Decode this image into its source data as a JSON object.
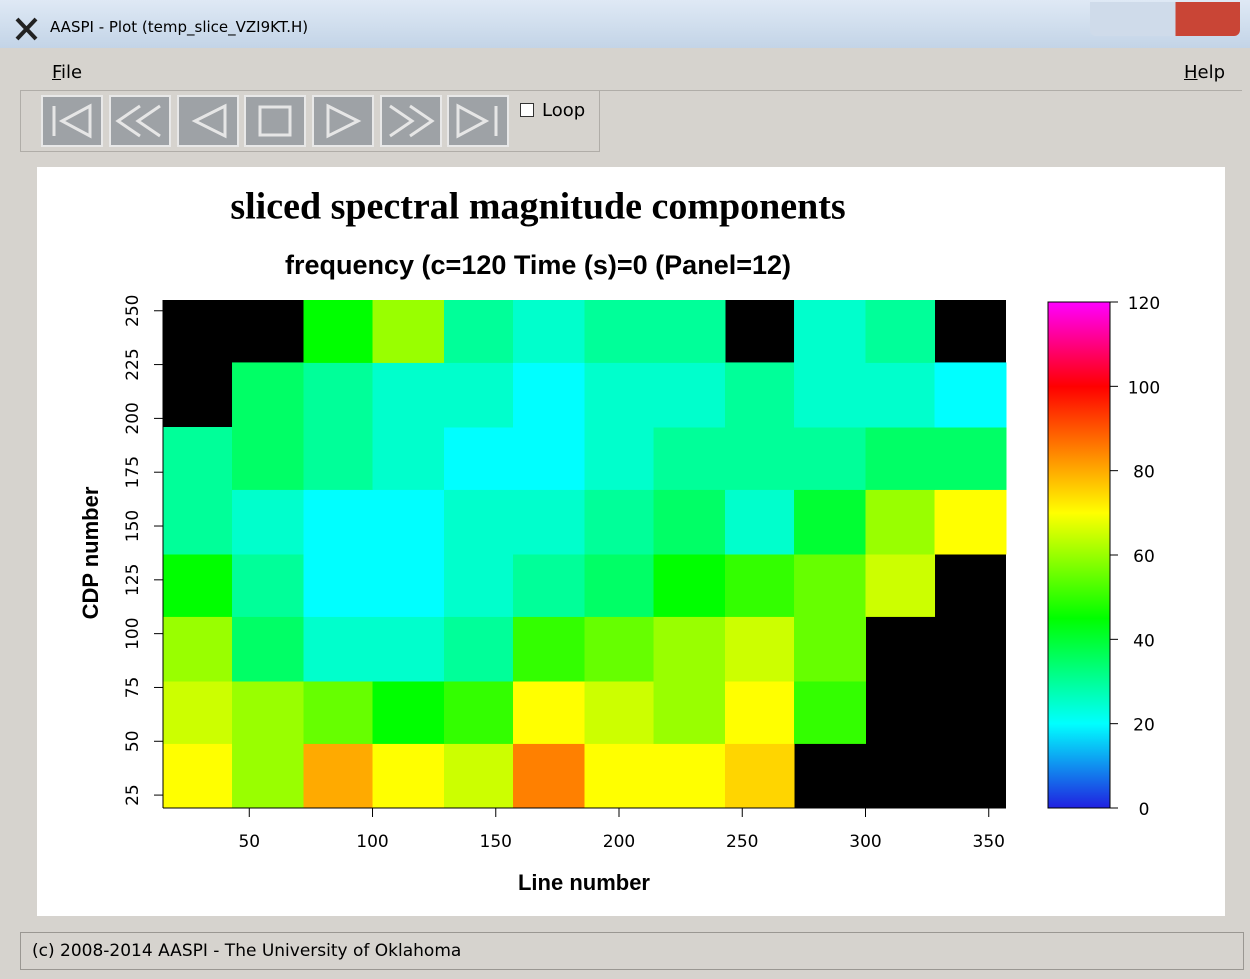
{
  "window": {
    "title": "AASPI - Plot (temp_slice_VZI9KT.H)"
  },
  "menu": [
    "File",
    "Help"
  ],
  "toolbar": {
    "loop": "Loop"
  },
  "status": "(c) 2008-2014 AASPI - The University of Oklahoma",
  "chart_data": {
    "type": "heatmap",
    "title": "sliced spectral magnitude components",
    "subtitle": "frequency (c=120 Time (s)=0 (Panel=12)",
    "xlabel": "Line number",
    "ylabel": "CDP number",
    "xlim": [
      15,
      357
    ],
    "ylim": [
      19,
      255
    ],
    "xticks": [
      50,
      100,
      150,
      200,
      250,
      300,
      350
    ],
    "yticks": [
      25,
      50,
      75,
      100,
      125,
      150,
      175,
      200,
      225,
      250
    ],
    "xbins": [
      15,
      43,
      72,
      100,
      129,
      157,
      186,
      214,
      243,
      271,
      300,
      328,
      357
    ],
    "ybins": [
      19,
      49,
      78,
      108,
      137,
      167,
      196,
      226,
      255
    ],
    "z": [
      [
        70,
        60,
        80,
        70,
        65,
        85,
        70,
        70,
        75,
        null,
        null,
        null
      ],
      [
        65,
        60,
        55,
        45,
        50,
        70,
        65,
        60,
        70,
        50,
        null,
        null
      ],
      [
        60,
        35,
        25,
        25,
        30,
        50,
        55,
        60,
        65,
        55,
        null,
        null
      ],
      [
        45,
        30,
        20,
        20,
        25,
        30,
        35,
        45,
        50,
        55,
        65,
        null
      ],
      [
        30,
        25,
        20,
        20,
        25,
        25,
        30,
        35,
        25,
        40,
        60,
        70
      ],
      [
        30,
        35,
        30,
        25,
        20,
        20,
        25,
        30,
        30,
        30,
        35,
        35
      ],
      [
        null,
        35,
        30,
        25,
        25,
        20,
        25,
        25,
        30,
        25,
        25,
        20
      ],
      [
        null,
        null,
        45,
        60,
        30,
        25,
        30,
        30,
        null,
        25,
        30,
        null
      ]
    ],
    "clim": [
      0,
      120
    ],
    "cticks": [
      0,
      20,
      40,
      60,
      80,
      100,
      120
    ],
    "colormap": [
      {
        "value": 0,
        "color": "#2020e0"
      },
      {
        "value": 20,
        "color": "#00ffff"
      },
      {
        "value": 45,
        "color": "#00ff00"
      },
      {
        "value": 70,
        "color": "#ffff00"
      },
      {
        "value": 100,
        "color": "#ff0000"
      },
      {
        "value": 120,
        "color": "#ff00ff"
      }
    ]
  }
}
